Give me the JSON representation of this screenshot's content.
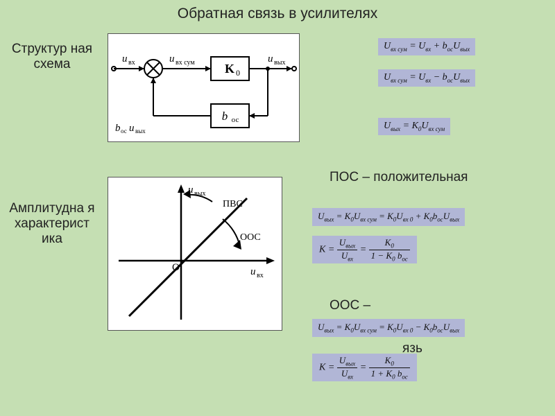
{
  "title": "Обратная связь в усилителях",
  "labels": {
    "struct": "Структур\nная схема",
    "amp": "Амплитудна\nя\nхарактерист\nика",
    "pos": "ПОС –\nположительная",
    "oos": "ООС –",
    "oos_tail": "язь"
  },
  "blockDiagram": {
    "bg": "#ffffff",
    "stroke": "#000000",
    "labels": {
      "uvx": "u вх",
      "uvxsum": "u вх сум",
      "uvyh": "u вых",
      "boc_uvyh": "boc u вых",
      "K0": "K₀",
      "boc": "b ос"
    }
  },
  "ampDiagram": {
    "bg": "#ffffff",
    "stroke": "#000000",
    "labels": {
      "uvyh": "u вых",
      "uvx": "u вх",
      "O": "O",
      "PVS": "ПВС",
      "OOS": "ООС"
    }
  },
  "formulas": {
    "f1": "U<sub>вх сум</sub> = U<sub>вх</sub> + b<sub>ос</sub>U<sub>вых</sub>",
    "f2": "U<sub>вх сум</sub> = U<sub>вх</sub> − b<sub>ос</sub>U<sub>вых</sub>",
    "f3": "U<sub>вых</sub> = K<sub>0</sub>U<sub>вх сум</sub>",
    "f4": "U<sub>вых</sub> = K<sub>0</sub>U<sub>вх сум</sub> = K<sub>0</sub>U<sub>вх 0</sub> + K<sub>0</sub>b<sub>ос</sub>U<sub>вых</sub>",
    "f6": "U<sub>вых</sub> = K<sub>0</sub>U<sub>вх сум</sub> = K<sub>0</sub>U<sub>вх 0</sub> − K<sub>0</sub>b<sub>ос</sub>U<sub>вых</sub>",
    "K5_lhs": "K =",
    "K5_num1": "U<sub>вых</sub>",
    "K5_den1": "U<sub>вх</sub>",
    "K5_num2": "K<sub>0</sub>",
    "K5_den2": "1 − K<sub>0</sub> b<sub>ос</sub>",
    "K7_den2": "1 + K<sub>0</sub> b<sub>ос</sub>"
  },
  "colors": {
    "bg": "#c5dfb3",
    "formula_bg": "#b1b6d6",
    "text": "#222222"
  }
}
